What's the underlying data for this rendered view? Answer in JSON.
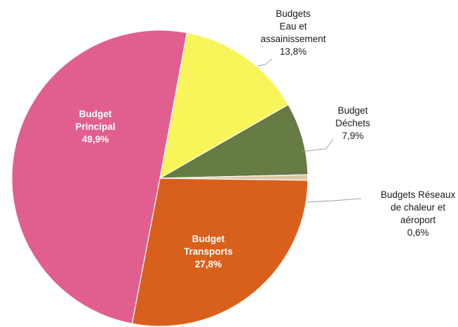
{
  "chart_data": {
    "type": "pie",
    "title": "",
    "start_angle_deg": 79.5,
    "direction": "clockwise",
    "slices": [
      {
        "lines": [
          "Budgets",
          "Eau et",
          "assainissement"
        ],
        "value": 13.8,
        "value_label": "13,8%",
        "color": "#f7f55a",
        "label_position": "outside"
      },
      {
        "lines": [
          "Budget",
          "Déchets"
        ],
        "value": 7.9,
        "value_label": "7,9%",
        "color": "#677b45",
        "label_position": "outside"
      },
      {
        "lines": [
          "Budgets Réseaux",
          "de chaleur et",
          "aéroport"
        ],
        "value": 0.6,
        "value_label": "0,6%",
        "color": "#d9c7a4",
        "label_position": "outside"
      },
      {
        "lines": [
          "Budget",
          "Transports"
        ],
        "value": 27.8,
        "value_label": "27,8%",
        "color": "#d8601c",
        "label_position": "inside"
      },
      {
        "lines": [
          "Budget",
          "Principal"
        ],
        "value": 49.9,
        "value_label": "49,9%",
        "color": "#e15f8e",
        "label_position": "inside"
      }
    ]
  }
}
